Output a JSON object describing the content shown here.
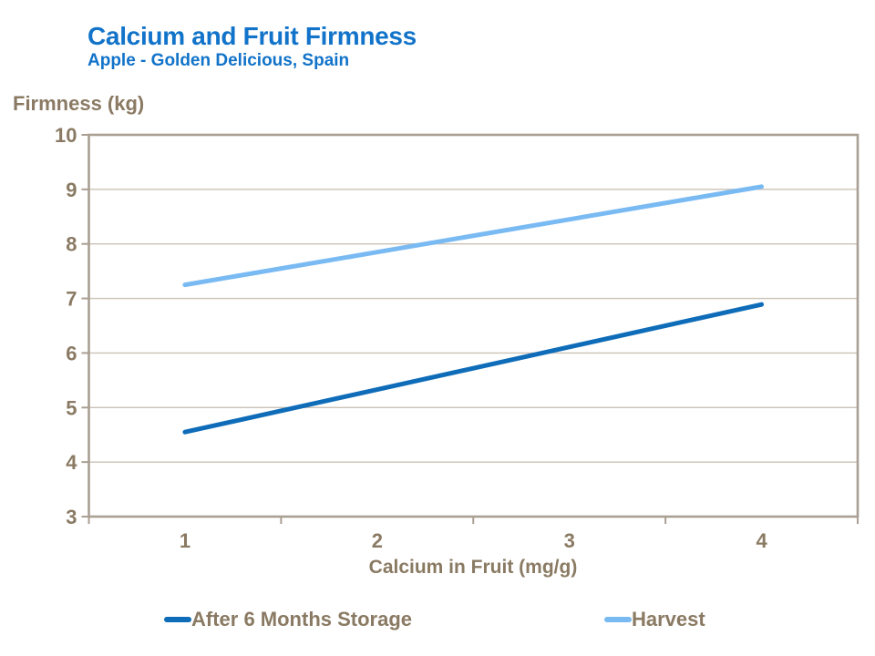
{
  "header": {
    "title": "Calcium and Fruit Firmness",
    "subtitle": "Apple - Golden Delicious, Spain"
  },
  "colors": {
    "title_blue": "#1173C9",
    "text_taupe": "#8A7A63",
    "axis_frame": "#A99F92",
    "gridline": "#CBC2B6",
    "background": "#FFFFFF"
  },
  "chart_data": {
    "type": "line",
    "title": "Calcium and Fruit Firmness",
    "subtitle": "Apple - Golden Delicious, Spain",
    "xlabel": "Calcium in Fruit (mg/g)",
    "ylabel": "Firmness (kg)",
    "categories": [
      "1",
      "2",
      "3",
      "4"
    ],
    "series": [
      {
        "name": "After 6 Months Storage",
        "color": "#0E6CB8",
        "values": [
          4.55,
          5.33,
          6.11,
          6.89
        ]
      },
      {
        "name": "Harvest",
        "color": "#79BAF3",
        "values": [
          7.25,
          7.85,
          8.45,
          9.05
        ]
      }
    ],
    "ylim": [
      3,
      10
    ],
    "y_ticks": [
      3,
      4,
      5,
      6,
      7,
      8,
      9,
      10
    ],
    "grid": "horizontal",
    "legend_position": "bottom"
  }
}
